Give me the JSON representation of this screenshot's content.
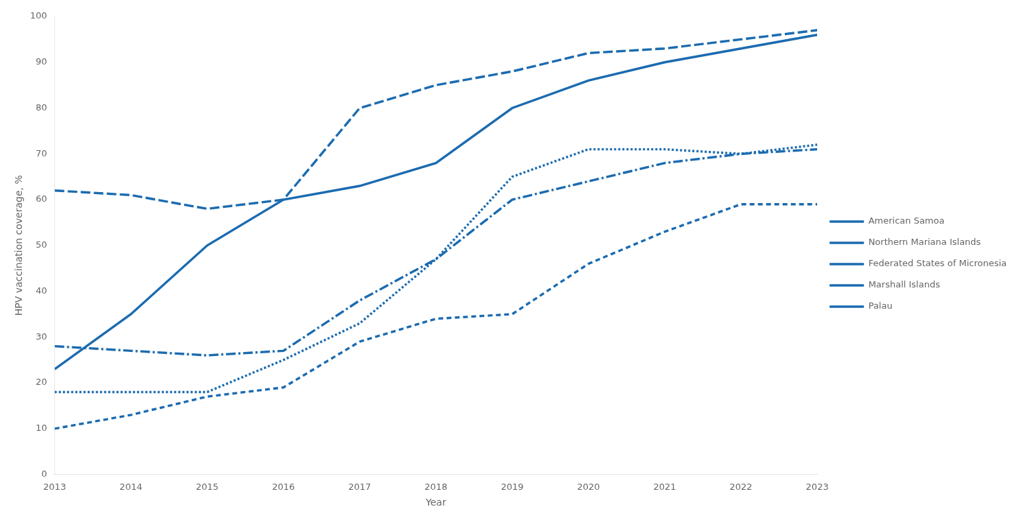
{
  "chart_data": {
    "type": "line",
    "xlabel": "Year",
    "ylabel": "HPV vaccination coverage, %",
    "x": [
      2013,
      2014,
      2015,
      2016,
      2017,
      2018,
      2019,
      2020,
      2021,
      2022,
      2023
    ],
    "series": [
      {
        "name": "American Samoa",
        "color": "#1B6BB0",
        "line_style": "solid",
        "values": [
          23,
          35,
          50,
          60,
          63,
          68,
          80,
          86,
          90,
          93,
          96
        ]
      },
      {
        "name": "Northern Mariana Islands",
        "color": "#1B6BB0",
        "line_style": "long_dash",
        "values": [
          62,
          61,
          58,
          60,
          80,
          85,
          88,
          92,
          93,
          95,
          97
        ]
      },
      {
        "name": "Federated States of Micronesia",
        "color": "#1B6BB0",
        "line_style": "dotted",
        "values": [
          18,
          18,
          18,
          25,
          33,
          47,
          65,
          71,
          71,
          70,
          72
        ]
      },
      {
        "name": "Marshall Islands",
        "color": "#1B6BB0",
        "line_style": "dash_dot",
        "values": [
          28,
          27,
          26,
          27,
          38,
          47,
          60,
          64,
          68,
          70,
          71
        ]
      },
      {
        "name": "Palau",
        "color": "#1B6BB0",
        "line_style": "dashed",
        "values": [
          10,
          13,
          17,
          19,
          29,
          34,
          35,
          46,
          53,
          59,
          59
        ]
      }
    ],
    "xlim": [
      2013,
      2023
    ],
    "ylim": [
      0,
      100
    ],
    "xticks": [
      2013,
      2014,
      2015,
      2016,
      2017,
      2018,
      2019,
      2020,
      2021,
      2022,
      2023
    ],
    "yticks": [
      0,
      10,
      20,
      30,
      40,
      50,
      60,
      70,
      80,
      90,
      100
    ],
    "grid": false,
    "legend": "right"
  }
}
